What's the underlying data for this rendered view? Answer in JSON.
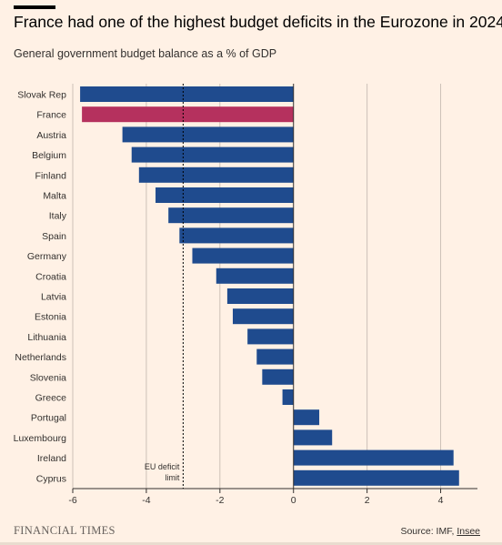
{
  "chart_data": {
    "type": "bar",
    "orientation": "horizontal",
    "title": "France had one of the highest budget deficits in the Eurozone in 2024",
    "subtitle": "General government budget balance as a % of GDP",
    "categories": [
      "Slovak Rep",
      "France",
      "Austria",
      "Belgium",
      "Finland",
      "Malta",
      "Italy",
      "Spain",
      "Germany",
      "Croatia",
      "Latvia",
      "Estonia",
      "Lithuania",
      "Netherlands",
      "Slovenia",
      "Greece",
      "Portugal",
      "Luxembourg",
      "Ireland",
      "Cyprus"
    ],
    "values": [
      -5.8,
      -5.75,
      -4.65,
      -4.4,
      -4.2,
      -3.75,
      -3.4,
      -3.1,
      -2.75,
      -2.1,
      -1.8,
      -1.65,
      -1.25,
      -1.0,
      -0.85,
      -0.3,
      0.7,
      1.05,
      4.35,
      4.5
    ],
    "highlight": "France",
    "colors": {
      "default": "#1f4b8e",
      "highlight": "#b5315e",
      "grid": "#ccc1b7",
      "axis": "#33302e"
    },
    "xlim": [
      -6,
      5
    ],
    "xticks": [
      -6,
      -4,
      -2,
      0,
      2,
      4
    ],
    "xtick_labels": [
      "-6",
      "-4",
      "-2",
      "0",
      "2",
      "4"
    ],
    "grid": true,
    "reference_line": {
      "value": -3,
      "label_lines": [
        "EU deficit",
        "limit"
      ],
      "style": "dotted"
    }
  },
  "footer": {
    "brand": "FINANCIAL TIMES",
    "source_prefix": "Source: IMF,",
    "source_link": "Insee"
  }
}
